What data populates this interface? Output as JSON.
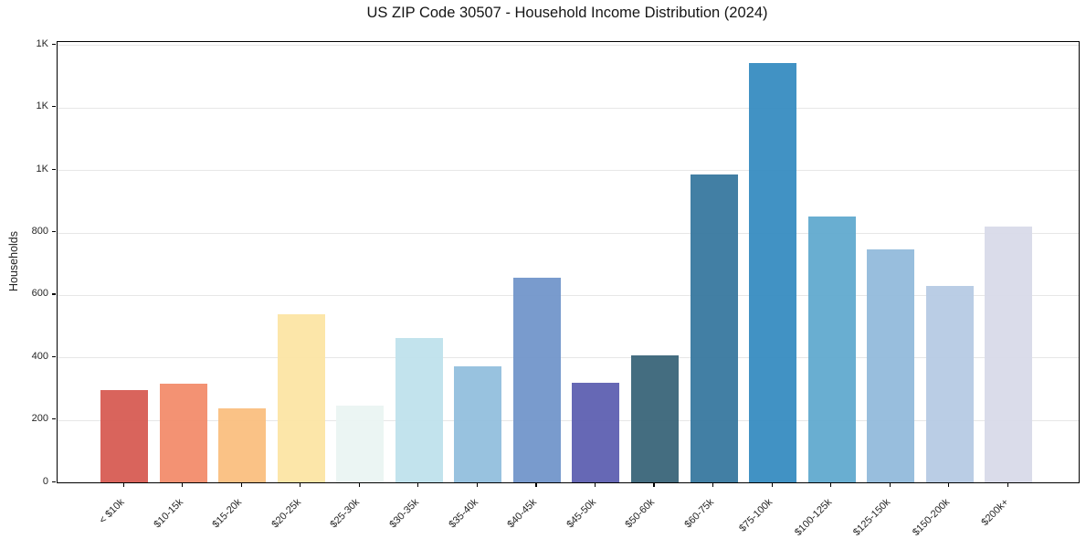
{
  "chart_data": {
    "type": "bar",
    "title": "US ZIP Code 30507 - Household Income Distribution (2024)",
    "xlabel": "",
    "ylabel": "Households",
    "categories": [
      "< $10k",
      "$10-15k",
      "$15-20k",
      "$20-25k",
      "$25-30k",
      "$30-35k",
      "$35-40k",
      "$40-45k",
      "$45-50k",
      "$50-60k",
      "$60-75k",
      "$75-100k",
      "$100-125k",
      "$125-150k",
      "$150-200k",
      "$200k+"
    ],
    "values": [
      295,
      317,
      238,
      538,
      247,
      462,
      371,
      654,
      318,
      408,
      985,
      1343,
      850,
      745,
      630,
      820
    ],
    "bar_colors": [
      "#d65850",
      "#f28a68",
      "#fabd7d",
      "#fce4a2",
      "#e9f4f2",
      "#bde1ec",
      "#90bddd",
      "#6f93c9",
      "#5a5caf",
      "#366276",
      "#34759d",
      "#338ac0",
      "#5ea8cd",
      "#90b9da",
      "#b5c9e3",
      "#d7d9e8"
    ],
    "ylim": [
      0,
      1410
    ],
    "yticks": {
      "values": [
        0,
        200,
        400,
        600,
        800,
        1000,
        1200,
        1400
      ],
      "labels": [
        "0",
        "200",
        "400",
        "600",
        "800",
        "1K",
        "1K",
        "1K"
      ]
    },
    "grid": "horizontal",
    "gridline_color": "#e7e7e7",
    "legend": "none",
    "plot_background": "#ffffff",
    "spine_color": "#000000"
  }
}
